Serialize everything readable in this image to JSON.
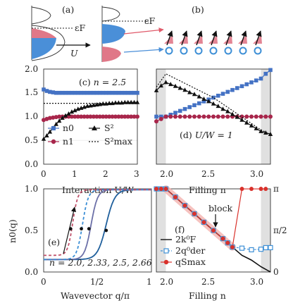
{
  "figure": {
    "panel_labels": [
      "(a)",
      "(b)",
      "(c)",
      "(d)",
      "(e)",
      "(f)"
    ],
    "schematic": {
      "fermi_label": "εF",
      "arrow_label": "U"
    }
  },
  "chart_data": [
    {
      "panel": "(c)",
      "type": "line",
      "annotation": "n = 2.5",
      "xlabel": "Interaction U/W",
      "ylabel": "",
      "xlim": [
        0,
        3
      ],
      "ylim": [
        0,
        2
      ],
      "xticks": [
        "0",
        "1",
        "2",
        "3"
      ],
      "yticks": [
        "0.0",
        "0.5",
        "1.0",
        "1.5",
        "2.0"
      ],
      "legend": [
        "n0",
        "n1",
        "S²",
        "S²max"
      ],
      "series": [
        {
          "name": "n0",
          "color": "#4472c4",
          "marker": "square",
          "x": [
            0,
            0.1,
            0.2,
            0.3,
            0.4,
            0.5,
            0.6,
            0.7,
            0.8,
            0.9,
            1.0,
            1.1,
            1.2,
            1.3,
            1.4,
            1.5,
            1.6,
            1.7,
            1.8,
            1.9,
            2.0,
            2.1,
            2.2,
            2.3,
            2.4,
            2.5,
            2.6,
            2.7,
            2.8,
            2.9,
            3.0
          ],
          "y": [
            1.57,
            1.54,
            1.52,
            1.51,
            1.5,
            1.5,
            1.5,
            1.5,
            1.5,
            1.5,
            1.5,
            1.5,
            1.5,
            1.5,
            1.5,
            1.5,
            1.5,
            1.5,
            1.5,
            1.5,
            1.5,
            1.5,
            1.5,
            1.5,
            1.5,
            1.5,
            1.5,
            1.5,
            1.5,
            1.5,
            1.5
          ]
        },
        {
          "name": "n1",
          "color": "#a8264b",
          "marker": "circle",
          "x": [
            0,
            0.1,
            0.2,
            0.3,
            0.4,
            0.5,
            0.6,
            0.7,
            0.8,
            0.9,
            1.0,
            1.1,
            1.2,
            1.3,
            1.4,
            1.5,
            1.6,
            1.7,
            1.8,
            1.9,
            2.0,
            2.1,
            2.2,
            2.3,
            2.4,
            2.5,
            2.6,
            2.7,
            2.8,
            2.9,
            3.0
          ],
          "y": [
            0.93,
            0.95,
            0.97,
            0.98,
            0.99,
            1.0,
            1.0,
            1.0,
            1.0,
            1.0,
            1.0,
            1.0,
            1.0,
            1.0,
            1.0,
            1.0,
            1.0,
            1.0,
            1.0,
            1.0,
            1.0,
            1.0,
            1.0,
            1.0,
            1.0,
            1.0,
            1.0,
            1.0,
            1.0,
            1.0,
            1.0
          ]
        },
        {
          "name": "S²",
          "color": "#111111",
          "marker": "triangle",
          "x": [
            0,
            0.1,
            0.2,
            0.3,
            0.4,
            0.5,
            0.6,
            0.7,
            0.8,
            0.9,
            1.0,
            1.1,
            1.2,
            1.3,
            1.4,
            1.5,
            1.6,
            1.7,
            1.8,
            1.9,
            2.0,
            2.1,
            2.2,
            2.3,
            2.4,
            2.5,
            2.6,
            2.7,
            2.8,
            2.9,
            3.0
          ],
          "y": [
            0.53,
            0.6,
            0.68,
            0.76,
            0.84,
            0.91,
            0.97,
            1.02,
            1.06,
            1.1,
            1.13,
            1.16,
            1.18,
            1.2,
            1.22,
            1.23,
            1.24,
            1.25,
            1.26,
            1.27,
            1.27,
            1.28,
            1.28,
            1.29,
            1.29,
            1.29,
            1.3,
            1.3,
            1.3,
            1.3,
            1.3
          ]
        },
        {
          "name": "S²max",
          "color": "#111111",
          "style": "dotted",
          "x": [
            0,
            3
          ],
          "y": [
            1.28,
            1.28
          ]
        }
      ]
    },
    {
      "panel": "(d)",
      "type": "line",
      "annotation": "U/W = 1",
      "xlabel": "Filling n",
      "xlim": [
        1.9,
        3.1
      ],
      "ylim": [
        0,
        2
      ],
      "xticks": [
        "2.0",
        "2.5",
        "3.0"
      ],
      "shaded_x": [
        [
          1.9,
          2.0
        ],
        [
          3.0,
          3.1
        ]
      ],
      "series": [
        {
          "name": "n0",
          "color": "#4472c4",
          "marker": "square",
          "x": [
            1.9,
            1.95,
            2.0,
            2.05,
            2.1,
            2.15,
            2.2,
            2.25,
            2.3,
            2.35,
            2.4,
            2.45,
            2.5,
            2.55,
            2.6,
            2.65,
            2.7,
            2.75,
            2.8,
            2.85,
            2.9,
            2.95,
            3.0,
            3.05,
            3.1
          ],
          "y": [
            1.0,
            1.0,
            1.0,
            1.04,
            1.08,
            1.12,
            1.16,
            1.2,
            1.24,
            1.28,
            1.32,
            1.36,
            1.4,
            1.44,
            1.48,
            1.52,
            1.56,
            1.6,
            1.64,
            1.68,
            1.72,
            1.76,
            1.8,
            1.9,
            1.98
          ]
        },
        {
          "name": "n1",
          "color": "#a8264b",
          "marker": "circle",
          "x": [
            1.9,
            1.95,
            2.0,
            2.05,
            2.1,
            2.15,
            2.2,
            2.25,
            2.3,
            2.35,
            2.4,
            2.45,
            2.5,
            2.55,
            2.6,
            2.65,
            2.7,
            2.75,
            2.8,
            2.85,
            2.9,
            2.95,
            3.0,
            3.05,
            3.1
          ],
          "y": [
            0.9,
            0.95,
            1.0,
            1.0,
            1.0,
            1.0,
            1.0,
            1.0,
            1.0,
            1.0,
            1.0,
            1.0,
            1.0,
            1.0,
            1.0,
            1.0,
            1.0,
            1.0,
            1.0,
            1.0,
            1.0,
            1.0,
            1.0,
            1.0,
            1.0
          ]
        },
        {
          "name": "S²",
          "color": "#111111",
          "marker": "triangle",
          "x": [
            1.9,
            1.95,
            2.0,
            2.05,
            2.1,
            2.15,
            2.2,
            2.25,
            2.3,
            2.35,
            2.4,
            2.45,
            2.5,
            2.55,
            2.6,
            2.65,
            2.7,
            2.75,
            2.8,
            2.85,
            2.9,
            2.95,
            3.0,
            3.05,
            3.1
          ],
          "y": [
            1.55,
            1.65,
            1.72,
            1.68,
            1.64,
            1.6,
            1.56,
            1.51,
            1.47,
            1.42,
            1.37,
            1.32,
            1.27,
            1.22,
            1.16,
            1.11,
            1.05,
            0.99,
            0.93,
            0.87,
            0.81,
            0.75,
            0.69,
            0.66,
            0.63
          ]
        },
        {
          "name": "S²max",
          "color": "#111111",
          "style": "dotted",
          "x": [
            1.9,
            2.0,
            2.5,
            3.0,
            3.1
          ],
          "y": [
            1.62,
            1.9,
            1.4,
            0.72,
            0.63
          ]
        }
      ]
    },
    {
      "panel": "(e)",
      "type": "line",
      "annotation": "n = 2.0, 2.33, 2.5, 2.66",
      "xlabel": "Wavevector q/π",
      "ylabel": "n0(q)",
      "xlim": [
        0,
        1
      ],
      "ylim": [
        0,
        1
      ],
      "xticks": [
        "0",
        "1/2",
        "1"
      ],
      "yticks": [
        "0.0",
        "0.5",
        "1.0"
      ],
      "series": [
        {
          "name": "n = 2.0",
          "color": "#1f5f9c",
          "style": "solid",
          "center": 0.58,
          "low": 0.15,
          "high": 0.99,
          "width": 0.12,
          "dot": [
            0.58,
            0.5
          ]
        },
        {
          "name": "n = 2.33",
          "color": "#6c70a8",
          "style": "solid",
          "center": 0.44,
          "low": 0.15,
          "high": 0.99,
          "width": 0.09,
          "dot": [
            0.42,
            0.52
          ]
        },
        {
          "name": "n = 2.5",
          "color": "#3d8fd6",
          "style": "dashed",
          "center": 0.36,
          "low": 0.15,
          "high": 0.99,
          "width": 0.08,
          "dot": [
            0.35,
            0.52
          ]
        },
        {
          "name": "n = 2.66",
          "color": "#c0506a",
          "style": "dashed",
          "center": 0.27,
          "low": 0.2,
          "high": 0.99,
          "width": 0.07,
          "dot": [
            0.25,
            0.52
          ]
        }
      ]
    },
    {
      "panel": "(f)",
      "type": "line",
      "annotation": "block",
      "xlabel": "Filling n",
      "xlim": [
        1.9,
        3.1
      ],
      "ylim": [
        0,
        3.14159
      ],
      "xticks": [
        "2.0",
        "2.5",
        "3.0"
      ],
      "yticks_right": [
        "0",
        "π/2",
        "π"
      ],
      "shaded_x": [
        [
          1.9,
          2.0
        ],
        [
          3.0,
          3.1
        ]
      ],
      "legend": [
        "2k⁰F",
        "2q⁰der",
        "qSmax"
      ],
      "series": [
        {
          "name": "2k⁰F",
          "color": "#111111",
          "style": "solid",
          "x": [
            1.9,
            2.0,
            2.1,
            2.2,
            2.3,
            2.4,
            2.5,
            2.6,
            2.7,
            2.8,
            2.9,
            3.0,
            3.1
          ],
          "y": [
            3.14,
            3.14,
            2.83,
            2.51,
            2.2,
            1.88,
            1.57,
            1.26,
            0.94,
            0.63,
            0.45,
            0.2,
            0.0
          ]
        },
        {
          "name": "2q⁰der",
          "color": "#3d8fd6",
          "marker": "open-square",
          "x": [
            1.9,
            1.95,
            2.0,
            2.1,
            2.2,
            2.3,
            2.4,
            2.5,
            2.6,
            2.65,
            2.7,
            2.8,
            2.9,
            3.0,
            3.05,
            3.1
          ],
          "y": [
            3.14,
            3.14,
            3.14,
            2.83,
            2.51,
            2.2,
            1.88,
            1.57,
            1.26,
            1.1,
            0.94,
            0.9,
            0.84,
            0.86,
            0.92,
            0.92
          ]
        },
        {
          "name": "qSmax",
          "color": "#d9312b",
          "marker": "circle",
          "x": [
            1.9,
            1.95,
            2.0,
            2.1,
            2.2,
            2.3,
            2.4,
            2.5,
            2.6,
            2.65,
            2.7,
            2.8,
            2.9,
            3.0,
            3.05
          ],
          "y": [
            3.14,
            3.14,
            3.14,
            2.83,
            2.51,
            2.2,
            1.88,
            1.57,
            1.26,
            1.1,
            0.94,
            3.14,
            3.14,
            3.14,
            3.14
          ]
        }
      ]
    }
  ]
}
